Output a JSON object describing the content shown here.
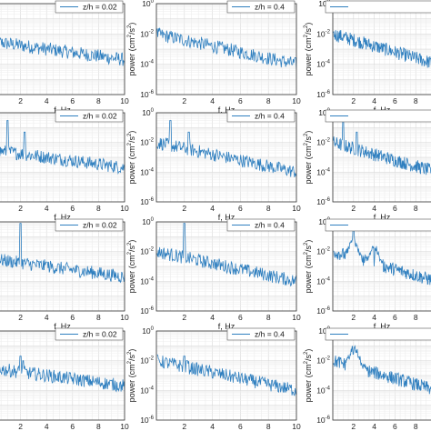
{
  "chart_data": {
    "type": "line",
    "layout": "4x3 grid of log-scale spectra (cropped)",
    "x_label": "f, Hz",
    "y_label_base": "power (cm",
    "y_label_sup1": "2",
    "y_label_mid": "/s",
    "y_label_sup2": "2",
    "y_label_end": ")",
    "xlim": [
      0,
      10
    ],
    "ylim": [
      1e-06,
      1
    ],
    "y_log": true,
    "x_ticks": [
      2,
      4,
      6,
      8,
      10
    ],
    "y_ticks": [
      1e-06,
      0.0001,
      0.01,
      1
    ],
    "y_tick_base": "10",
    "y_tick_exps": [
      "-6",
      "-4",
      "-2",
      "0"
    ],
    "grid": true,
    "line_color": "#2f7fbf",
    "legends": [
      "z/h = 0.02",
      "z/h = 0.4",
      ""
    ],
    "rows": [
      {
        "peaks": []
      },
      {
        "peaks": [
          {
            "f": 1.0,
            "p": 0.3
          },
          {
            "f": 2.3,
            "p": 0.05
          }
        ]
      },
      {
        "peaks": [
          {
            "f": 2.0,
            "p": 0.8
          },
          {
            "f": 4.0,
            "p": 0.002
          }
        ]
      },
      {
        "peaks": [
          {
            "f": 2.0,
            "p": 0.02
          },
          {
            "f": 2.2,
            "p": 0.01
          }
        ]
      }
    ],
    "columns": [
      {
        "legend": "z/h = 0.02",
        "base_start": 0.003,
        "base_end": 0.0002
      },
      {
        "legend": "z/h = 0.4",
        "base_start": 0.01,
        "base_end": 0.0001
      },
      {
        "legend": "",
        "base_start": 0.01,
        "base_end": 0.0001
      }
    ]
  }
}
